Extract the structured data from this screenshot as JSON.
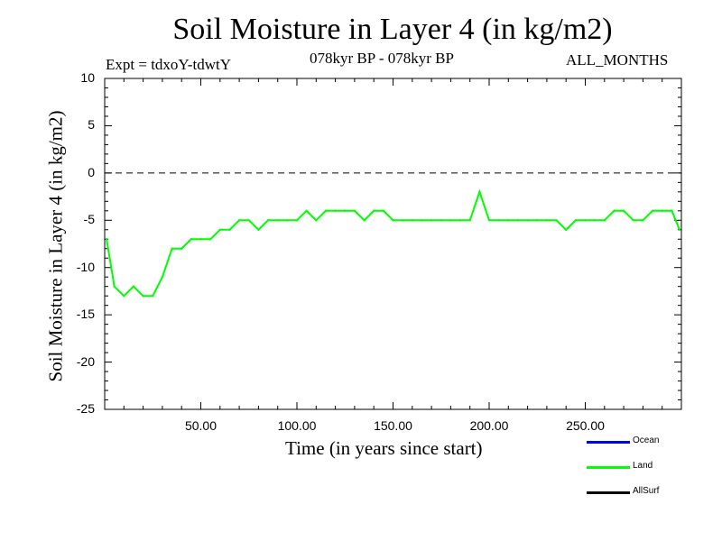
{
  "chart_data": {
    "type": "line",
    "title": "Soil Moisture in Layer 4 (in kg/m2)",
    "expt_label": "Expt = tdxoY-tdwtY",
    "period_label": "078kyr BP - 078kyr BP",
    "months_label": "ALL_MONTHS",
    "xlabel": "Time (in years since start)",
    "ylabel": "Soil Moisture in Layer 4 (in kg/m2)",
    "xlim": [
      0,
      300
    ],
    "ylim": [
      -25,
      10
    ],
    "xticks": [
      50,
      100,
      150,
      200,
      250
    ],
    "xtick_labels": [
      "50.00",
      "100.00",
      "150.00",
      "200.00",
      "250.00"
    ],
    "yticks": [
      10,
      5,
      0,
      -5,
      -10,
      -15,
      -20,
      -25
    ],
    "ytick_labels": [
      "10",
      "5",
      "0",
      "-5",
      "-10",
      "-15",
      "-20",
      "-25"
    ],
    "reference_line": 0,
    "legend": [
      {
        "name": "Ocean",
        "color": "#0000ff"
      },
      {
        "name": "Land",
        "color": "#00ff00"
      },
      {
        "name": "AllSurf",
        "color": "#000000"
      }
    ],
    "series": [
      {
        "name": "Land",
        "color": "#00ff00",
        "x": [
          1,
          5,
          10,
          15,
          20,
          25,
          30,
          35,
          40,
          45,
          50,
          55,
          60,
          65,
          70,
          75,
          80,
          85,
          90,
          95,
          100,
          105,
          110,
          115,
          120,
          125,
          130,
          135,
          140,
          145,
          150,
          155,
          160,
          165,
          170,
          175,
          180,
          185,
          190,
          195,
          200,
          205,
          210,
          215,
          220,
          225,
          230,
          235,
          240,
          245,
          250,
          255,
          260,
          265,
          270,
          275,
          280,
          285,
          290,
          295,
          299
        ],
        "y": [
          -7,
          -12,
          -13,
          -12,
          -13,
          -13,
          -11,
          -8,
          -8,
          -7,
          -7,
          -7,
          -6,
          -6,
          -5,
          -5,
          -6,
          -5,
          -5,
          -5,
          -5,
          -4,
          -5,
          -4,
          -4,
          -4,
          -4,
          -5,
          -4,
          -4,
          -5,
          -5,
          -5,
          -5,
          -5,
          -5,
          -5,
          -5,
          -5,
          -2,
          -5,
          -5,
          -5,
          -5,
          -5,
          -5,
          -5,
          -5,
          -6,
          -5,
          -5,
          -5,
          -5,
          -4,
          -4,
          -5,
          -5,
          -4,
          -4,
          -4,
          -6
        ]
      }
    ]
  }
}
